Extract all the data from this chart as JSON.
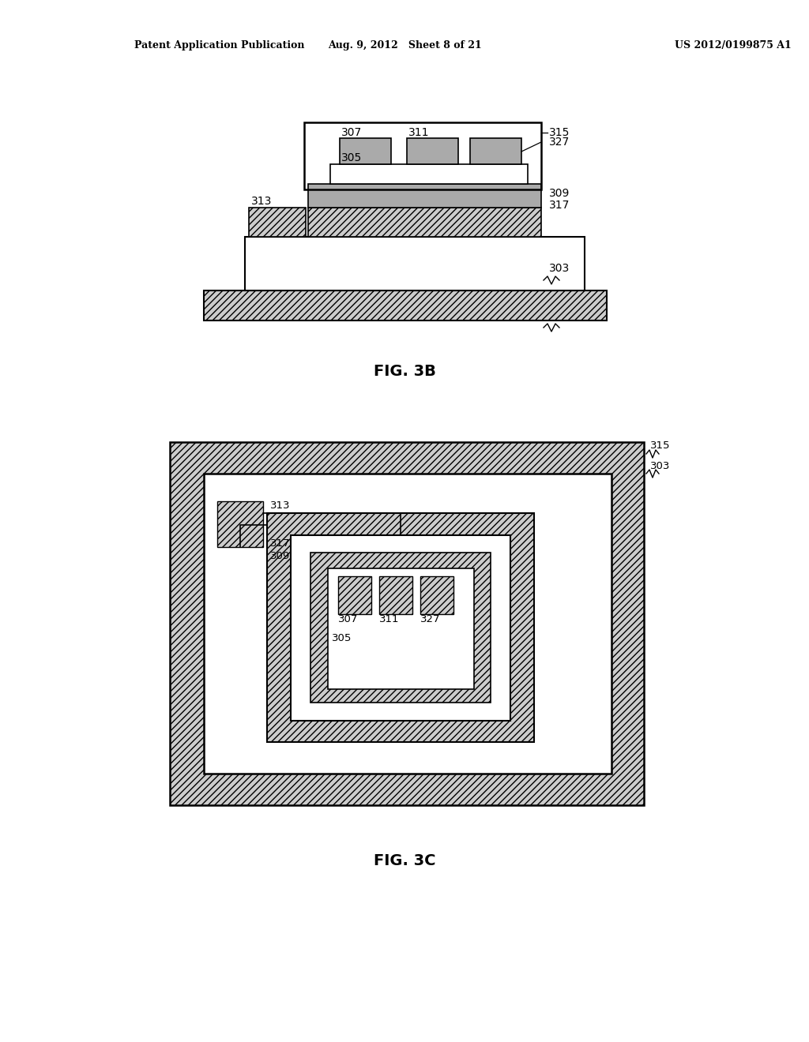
{
  "bg_color": "#ffffff",
  "line_color": "#000000",
  "header_text_left": "Patent Application Publication",
  "header_text_mid": "Aug. 9, 2012   Sheet 8 of 21",
  "header_text_right": "US 2012/0199875 A1",
  "fig3b_label": "FIG. 3B",
  "fig3c_label": "FIG. 3C",
  "gray_fill": "#b0b0b0",
  "white_fill": "#ffffff",
  "light_gray": "#d8d8d8"
}
